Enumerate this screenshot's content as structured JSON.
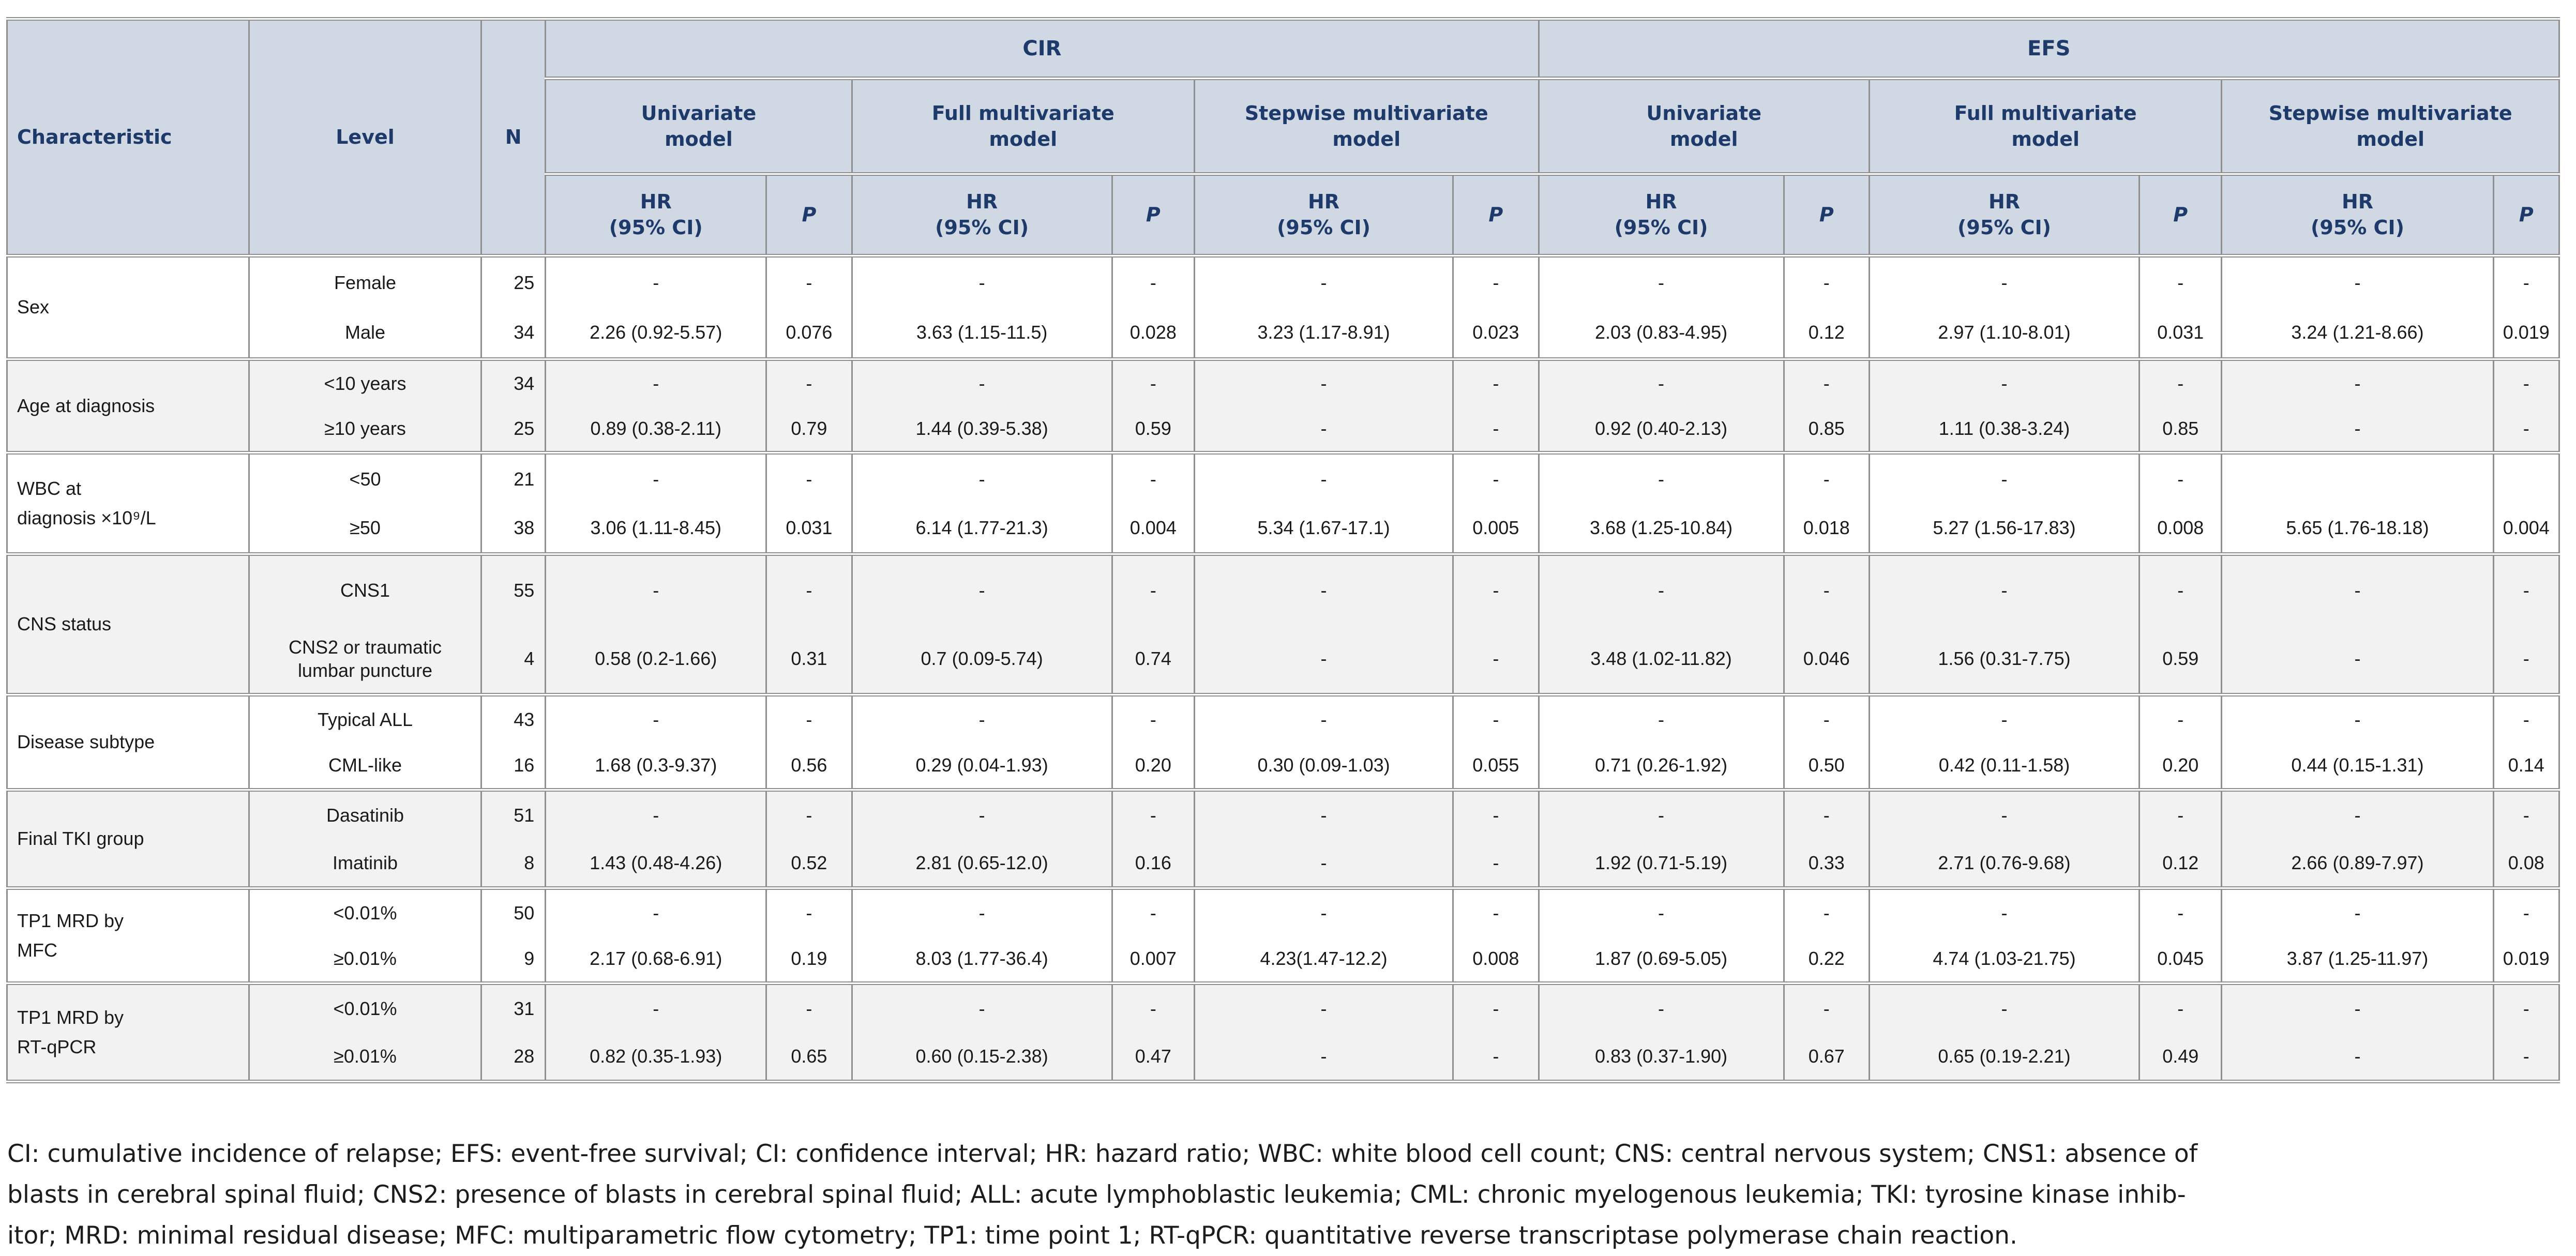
{
  "colors": {
    "header_bg": "#d0d9e3",
    "header_text": "#1e3a6a",
    "border": "#8f8f8f",
    "row_alt_bg": "#f2f2f2",
    "body_text": "#1a1a1a"
  },
  "table": {
    "header": {
      "characteristic": "Characteristic",
      "level": "Level",
      "n": "N",
      "groups": [
        "CIR",
        "EFS"
      ],
      "models": [
        "Univariate",
        "Full multivariate",
        "Stepwise multivariate"
      ],
      "model_line2": "model",
      "hr_line1": "HR",
      "hr_line2": "(95% CI)",
      "p": "P"
    },
    "rows": [
      {
        "characteristic": [
          "Sex"
        ],
        "levels": [
          "Female",
          "Male"
        ],
        "n": [
          "25",
          "34"
        ],
        "cells": [
          [
            "-",
            "2.26 (0.92-5.57)"
          ],
          [
            "-",
            "0.076"
          ],
          [
            "-",
            "3.63 (1.15-11.5)"
          ],
          [
            "-",
            "0.028"
          ],
          [
            "-",
            "3.23 (1.17-8.91)"
          ],
          [
            "-",
            "0.023"
          ],
          [
            "-",
            "2.03 (0.83-4.95)"
          ],
          [
            "-",
            "0.12"
          ],
          [
            "-",
            "2.97 (1.10-8.01)"
          ],
          [
            "-",
            "0.031"
          ],
          [
            "-",
            "3.24 (1.21-8.66)"
          ],
          [
            "-",
            "0.019"
          ]
        ]
      },
      {
        "characteristic": [
          "Age at diagnosis"
        ],
        "levels": [
          "<10 years",
          "≥10 years"
        ],
        "n": [
          "34",
          "25"
        ],
        "cells": [
          [
            "-",
            "0.89 (0.38-2.11)"
          ],
          [
            "-",
            "0.79"
          ],
          [
            "-",
            "1.44 (0.39-5.38)"
          ],
          [
            "-",
            "0.59"
          ],
          [
            "-",
            "-"
          ],
          [
            "-",
            "-"
          ],
          [
            "-",
            "0.92 (0.40-2.13)"
          ],
          [
            "-",
            "0.85"
          ],
          [
            "-",
            "1.11 (0.38-3.24)"
          ],
          [
            "-",
            "0.85"
          ],
          [
            "-",
            "-"
          ],
          [
            "-",
            "-"
          ]
        ]
      },
      {
        "characteristic": [
          "WBC at",
          "diagnosis ×10⁹/L"
        ],
        "levels": [
          "<50",
          "≥50"
        ],
        "n": [
          "21",
          "38"
        ],
        "cells": [
          [
            "-",
            "3.06 (1.11-8.45)"
          ],
          [
            "-",
            "0.031"
          ],
          [
            "-",
            "6.14 (1.77-21.3)"
          ],
          [
            "-",
            "0.004"
          ],
          [
            "-",
            "5.34 (1.67-17.1)"
          ],
          [
            "-",
            "0.005"
          ],
          [
            "-",
            "3.68 (1.25-10.84)"
          ],
          [
            "-",
            "0.018"
          ],
          [
            "-",
            "5.27 (1.56-17.83)"
          ],
          [
            "-",
            "0.008"
          ],
          [
            "",
            "5.65 (1.76-18.18)"
          ],
          [
            "",
            "0.004"
          ]
        ]
      },
      {
        "characteristic": [
          "CNS status"
        ],
        "levels": [
          "CNS1",
          "CNS2 or traumatic lumbar puncture"
        ],
        "n": [
          "55",
          "4"
        ],
        "cells": [
          [
            "-",
            "0.58 (0.2-1.66)"
          ],
          [
            "-",
            "0.31"
          ],
          [
            "-",
            "0.7 (0.09-5.74)"
          ],
          [
            "-",
            "0.74"
          ],
          [
            "-",
            "-"
          ],
          [
            "-",
            "-"
          ],
          [
            "-",
            "3.48 (1.02-11.82)"
          ],
          [
            "-",
            "0.046"
          ],
          [
            "-",
            "1.56 (0.31-7.75)"
          ],
          [
            "-",
            "0.59"
          ],
          [
            "-",
            "-"
          ],
          [
            "-",
            "-"
          ]
        ]
      },
      {
        "characteristic": [
          "Disease subtype"
        ],
        "levels": [
          "Typical ALL",
          "CML-like"
        ],
        "n": [
          "43",
          "16"
        ],
        "cells": [
          [
            "-",
            "1.68 (0.3-9.37)"
          ],
          [
            "-",
            "0.56"
          ],
          [
            "-",
            "0.29 (0.04-1.93)"
          ],
          [
            "-",
            "0.20"
          ],
          [
            "-",
            "0.30 (0.09-1.03)"
          ],
          [
            "-",
            "0.055"
          ],
          [
            "-",
            "0.71 (0.26-1.92)"
          ],
          [
            "-",
            "0.50"
          ],
          [
            "-",
            "0.42 (0.11-1.58)"
          ],
          [
            "-",
            "0.20"
          ],
          [
            "-",
            "0.44 (0.15-1.31)"
          ],
          [
            "-",
            "0.14"
          ]
        ]
      },
      {
        "characteristic": [
          "Final TKI group"
        ],
        "levels": [
          "Dasatinib",
          "Imatinib"
        ],
        "n": [
          "51",
          "8"
        ],
        "cells": [
          [
            "-",
            "1.43 (0.48-4.26)"
          ],
          [
            "-",
            "0.52"
          ],
          [
            "-",
            "2.81 (0.65-12.0)"
          ],
          [
            "-",
            "0.16"
          ],
          [
            "-",
            "-"
          ],
          [
            "-",
            "-"
          ],
          [
            "-",
            "1.92 (0.71-5.19)"
          ],
          [
            "-",
            "0.33"
          ],
          [
            "-",
            "2.71 (0.76-9.68)"
          ],
          [
            "-",
            "0.12"
          ],
          [
            "-",
            "2.66 (0.89-7.97)"
          ],
          [
            "-",
            "0.08"
          ]
        ]
      },
      {
        "characteristic": [
          "TP1 MRD by",
          "MFC"
        ],
        "levels": [
          "<0.01%",
          "≥0.01%"
        ],
        "n": [
          "50",
          "9"
        ],
        "cells": [
          [
            "-",
            "2.17 (0.68-6.91)"
          ],
          [
            "-",
            "0.19"
          ],
          [
            "-",
            "8.03 (1.77-36.4)"
          ],
          [
            "-",
            "0.007"
          ],
          [
            "-",
            "4.23(1.47-12.2)"
          ],
          [
            "-",
            "0.008"
          ],
          [
            "-",
            "1.87 (0.69-5.05)"
          ],
          [
            "-",
            "0.22"
          ],
          [
            "-",
            "4.74 (1.03-21.75)"
          ],
          [
            "-",
            "0.045"
          ],
          [
            "-",
            "3.87 (1.25-11.97)"
          ],
          [
            "-",
            "0.019"
          ]
        ]
      },
      {
        "characteristic": [
          "TP1 MRD by",
          "RT-qPCR"
        ],
        "levels": [
          "<0.01%",
          "≥0.01%"
        ],
        "n": [
          "31",
          "28"
        ],
        "cells": [
          [
            "-",
            "0.82 (0.35-1.93)"
          ],
          [
            "-",
            "0.65"
          ],
          [
            "-",
            "0.60 (0.15-2.38)"
          ],
          [
            "-",
            "0.47"
          ],
          [
            "-",
            "-"
          ],
          [
            "-",
            "-"
          ],
          [
            "-",
            "0.83 (0.37-1.90)"
          ],
          [
            "-",
            "0.67"
          ],
          [
            "-",
            "0.65 (0.19-2.21)"
          ],
          [
            "-",
            "0.49"
          ],
          [
            "-",
            "-"
          ],
          [
            "-",
            "-"
          ]
        ]
      }
    ]
  },
  "footnote_lines": [
    "CI: cumulative incidence of relapse; EFS: event-free survival; CI: confidence interval; HR: hazard ratio; WBC: white blood cell count; CNS: central nervous system; CNS1: absence of",
    "blasts in cerebral spinal fluid; CNS2: presence of blasts in cerebral spinal fluid; ALL: acute lymphoblastic leukemia; CML: chronic myelogenous leukemia; TKI: tyrosine kinase inhib-",
    "itor; MRD: minimal residual disease; MFC: multiparametric flow cytometry; TP1: time point 1; RT-qPCR: quantitative reverse transcriptase polymerase chain reaction."
  ]
}
